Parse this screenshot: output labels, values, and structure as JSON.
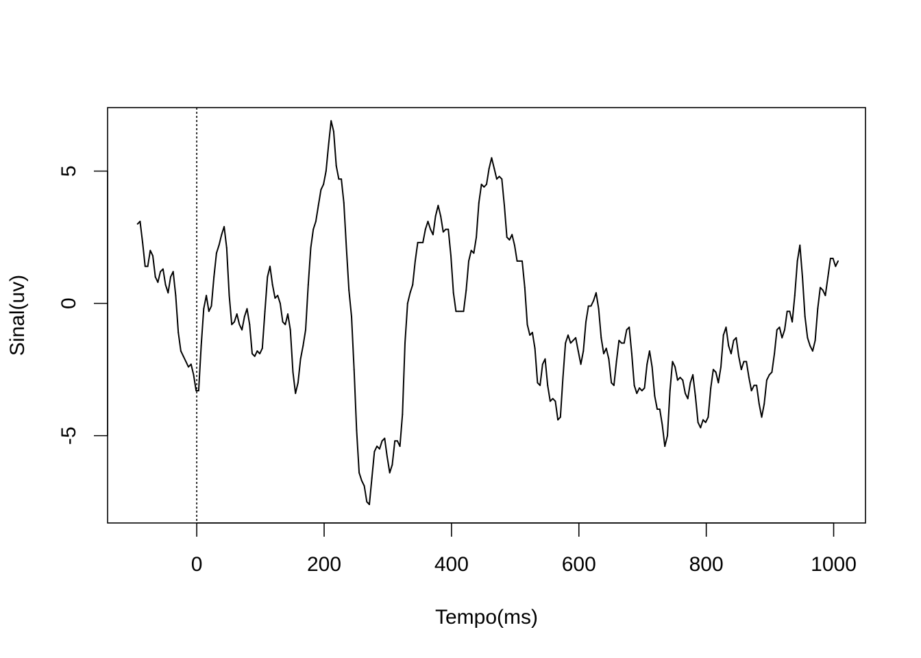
{
  "chart_data": {
    "type": "line",
    "title": "",
    "xlabel": "Tempo(ms)",
    "ylabel": "Sinal(uv)",
    "xlim": [
      -140,
      1050
    ],
    "ylim": [
      -8.3,
      7.4
    ],
    "x_ticks": [
      0,
      200,
      400,
      600,
      800,
      1000
    ],
    "x_tick_labels": [
      "0",
      "200",
      "400",
      "600",
      "800",
      "1000"
    ],
    "y_ticks": [
      -5,
      0,
      5
    ],
    "y_tick_labels": [
      "-5",
      "0",
      "5"
    ],
    "grid": false,
    "reference_line": {
      "x": 0,
      "style": "dotted"
    },
    "series": [
      {
        "color": "#000000",
        "points": [
          [
            -93,
            3.0
          ],
          [
            -89,
            3.1
          ],
          [
            -85,
            2.3
          ],
          [
            -81,
            1.4
          ],
          [
            -77,
            1.4
          ],
          [
            -73,
            2.0
          ],
          [
            -69,
            1.8
          ],
          [
            -65,
            1.0
          ],
          [
            -61,
            0.8
          ],
          [
            -57,
            1.2
          ],
          [
            -53,
            1.3
          ],
          [
            -49,
            0.7
          ],
          [
            -45,
            0.4
          ],
          [
            -41,
            1.0
          ],
          [
            -37,
            1.2
          ],
          [
            -33,
            0.3
          ],
          [
            -29,
            -1.1
          ],
          [
            -25,
            -1.8
          ],
          [
            -21,
            -2.0
          ],
          [
            -17,
            -2.2
          ],
          [
            -13,
            -2.4
          ],
          [
            -9,
            -2.3
          ],
          [
            -5,
            -2.7
          ],
          [
            -1,
            -3.3
          ],
          [
            3,
            -3.3
          ],
          [
            7,
            -1.6
          ],
          [
            11,
            -0.2
          ],
          [
            15,
            0.3
          ],
          [
            19,
            -0.3
          ],
          [
            23,
            -0.1
          ],
          [
            27,
            1.0
          ],
          [
            31,
            1.9
          ],
          [
            35,
            2.2
          ],
          [
            39,
            2.6
          ],
          [
            43,
            2.9
          ],
          [
            47,
            2.1
          ],
          [
            51,
            0.3
          ],
          [
            55,
            -0.8
          ],
          [
            59,
            -0.7
          ],
          [
            63,
            -0.4
          ],
          [
            67,
            -0.8
          ],
          [
            71,
            -1.0
          ],
          [
            75,
            -0.5
          ],
          [
            79,
            -0.2
          ],
          [
            83,
            -0.8
          ],
          [
            87,
            -1.9
          ],
          [
            91,
            -2.0
          ],
          [
            95,
            -1.8
          ],
          [
            99,
            -1.9
          ],
          [
            103,
            -1.7
          ],
          [
            107,
            -0.3
          ],
          [
            111,
            1.0
          ],
          [
            115,
            1.4
          ],
          [
            119,
            0.7
          ],
          [
            123,
            0.2
          ],
          [
            127,
            0.3
          ],
          [
            131,
            0.0
          ],
          [
            135,
            -0.7
          ],
          [
            139,
            -0.8
          ],
          [
            143,
            -0.4
          ],
          [
            147,
            -1.0
          ],
          [
            151,
            -2.6
          ],
          [
            155,
            -3.4
          ],
          [
            159,
            -3.0
          ],
          [
            163,
            -2.1
          ],
          [
            167,
            -1.6
          ],
          [
            171,
            -1.0
          ],
          [
            175,
            0.7
          ],
          [
            179,
            2.1
          ],
          [
            183,
            2.8
          ],
          [
            187,
            3.1
          ],
          [
            191,
            3.7
          ],
          [
            195,
            4.3
          ],
          [
            199,
            4.5
          ],
          [
            203,
            5.0
          ],
          [
            207,
            6.0
          ],
          [
            211,
            6.9
          ],
          [
            215,
            6.5
          ],
          [
            219,
            5.2
          ],
          [
            223,
            4.7
          ],
          [
            227,
            4.7
          ],
          [
            231,
            3.8
          ],
          [
            235,
            2.1
          ],
          [
            239,
            0.5
          ],
          [
            243,
            -0.5
          ],
          [
            247,
            -2.5
          ],
          [
            251,
            -4.8
          ],
          [
            255,
            -6.4
          ],
          [
            259,
            -6.7
          ],
          [
            263,
            -6.9
          ],
          [
            267,
            -7.5
          ],
          [
            271,
            -7.6
          ],
          [
            275,
            -6.6
          ],
          [
            279,
            -5.6
          ],
          [
            283,
            -5.4
          ],
          [
            287,
            -5.5
          ],
          [
            291,
            -5.2
          ],
          [
            295,
            -5.1
          ],
          [
            299,
            -5.8
          ],
          [
            303,
            -6.4
          ],
          [
            307,
            -6.1
          ],
          [
            311,
            -5.2
          ],
          [
            315,
            -5.2
          ],
          [
            319,
            -5.4
          ],
          [
            323,
            -4.2
          ],
          [
            327,
            -1.5
          ],
          [
            331,
            0.0
          ],
          [
            335,
            0.4
          ],
          [
            339,
            0.7
          ],
          [
            343,
            1.6
          ],
          [
            347,
            2.3
          ],
          [
            351,
            2.3
          ],
          [
            355,
            2.3
          ],
          [
            359,
            2.8
          ],
          [
            363,
            3.1
          ],
          [
            367,
            2.8
          ],
          [
            371,
            2.6
          ],
          [
            375,
            3.3
          ],
          [
            379,
            3.7
          ],
          [
            383,
            3.3
          ],
          [
            387,
            2.7
          ],
          [
            391,
            2.8
          ],
          [
            395,
            2.8
          ],
          [
            399,
            1.8
          ],
          [
            403,
            0.4
          ],
          [
            407,
            -0.3
          ],
          [
            411,
            -0.3
          ],
          [
            415,
            -0.3
          ],
          [
            419,
            -0.3
          ],
          [
            423,
            0.5
          ],
          [
            427,
            1.6
          ],
          [
            431,
            2.0
          ],
          [
            435,
            1.9
          ],
          [
            439,
            2.5
          ],
          [
            443,
            3.8
          ],
          [
            447,
            4.5
          ],
          [
            451,
            4.4
          ],
          [
            455,
            4.5
          ],
          [
            459,
            5.1
          ],
          [
            463,
            5.5
          ],
          [
            467,
            5.1
          ],
          [
            471,
            4.7
          ],
          [
            475,
            4.8
          ],
          [
            479,
            4.7
          ],
          [
            483,
            3.7
          ],
          [
            487,
            2.5
          ],
          [
            491,
            2.4
          ],
          [
            495,
            2.6
          ],
          [
            499,
            2.2
          ],
          [
            503,
            1.6
          ],
          [
            507,
            1.6
          ],
          [
            511,
            1.6
          ],
          [
            515,
            0.6
          ],
          [
            519,
            -0.8
          ],
          [
            523,
            -1.2
          ],
          [
            527,
            -1.1
          ],
          [
            531,
            -1.7
          ],
          [
            535,
            -3.0
          ],
          [
            539,
            -3.1
          ],
          [
            543,
            -2.3
          ],
          [
            547,
            -2.1
          ],
          [
            551,
            -3.1
          ],
          [
            555,
            -3.7
          ],
          [
            559,
            -3.6
          ],
          [
            563,
            -3.7
          ],
          [
            567,
            -4.4
          ],
          [
            571,
            -4.3
          ],
          [
            575,
            -2.8
          ],
          [
            579,
            -1.5
          ],
          [
            583,
            -1.2
          ],
          [
            587,
            -1.5
          ],
          [
            591,
            -1.4
          ],
          [
            595,
            -1.3
          ],
          [
            599,
            -1.8
          ],
          [
            603,
            -2.3
          ],
          [
            607,
            -1.8
          ],
          [
            611,
            -0.7
          ],
          [
            615,
            -0.1
          ],
          [
            619,
            -0.1
          ],
          [
            623,
            0.1
          ],
          [
            627,
            0.4
          ],
          [
            631,
            -0.2
          ],
          [
            635,
            -1.3
          ],
          [
            639,
            -1.9
          ],
          [
            643,
            -1.7
          ],
          [
            647,
            -2.1
          ],
          [
            651,
            -3.0
          ],
          [
            655,
            -3.1
          ],
          [
            659,
            -2.2
          ],
          [
            663,
            -1.4
          ],
          [
            667,
            -1.5
          ],
          [
            671,
            -1.5
          ],
          [
            675,
            -1.0
          ],
          [
            679,
            -0.9
          ],
          [
            683,
            -1.9
          ],
          [
            687,
            -3.1
          ],
          [
            691,
            -3.4
          ],
          [
            695,
            -3.2
          ],
          [
            699,
            -3.3
          ],
          [
            703,
            -3.2
          ],
          [
            707,
            -2.3
          ],
          [
            711,
            -1.8
          ],
          [
            715,
            -2.4
          ],
          [
            719,
            -3.5
          ],
          [
            723,
            -4.0
          ],
          [
            727,
            -4.0
          ],
          [
            731,
            -4.6
          ],
          [
            735,
            -5.4
          ],
          [
            739,
            -5.0
          ],
          [
            743,
            -3.3
          ],
          [
            747,
            -2.2
          ],
          [
            751,
            -2.4
          ],
          [
            755,
            -2.9
          ],
          [
            759,
            -2.8
          ],
          [
            763,
            -2.9
          ],
          [
            767,
            -3.4
          ],
          [
            771,
            -3.6
          ],
          [
            775,
            -3.0
          ],
          [
            779,
            -2.7
          ],
          [
            783,
            -3.5
          ],
          [
            787,
            -4.5
          ],
          [
            791,
            -4.7
          ],
          [
            795,
            -4.4
          ],
          [
            799,
            -4.5
          ],
          [
            803,
            -4.3
          ],
          [
            807,
            -3.2
          ],
          [
            811,
            -2.5
          ],
          [
            815,
            -2.6
          ],
          [
            819,
            -3.0
          ],
          [
            823,
            -2.4
          ],
          [
            827,
            -1.2
          ],
          [
            831,
            -0.9
          ],
          [
            835,
            -1.6
          ],
          [
            839,
            -1.9
          ],
          [
            843,
            -1.4
          ],
          [
            847,
            -1.3
          ],
          [
            851,
            -2.0
          ],
          [
            855,
            -2.5
          ],
          [
            859,
            -2.2
          ],
          [
            863,
            -2.2
          ],
          [
            867,
            -2.8
          ],
          [
            871,
            -3.3
          ],
          [
            875,
            -3.1
          ],
          [
            879,
            -3.1
          ],
          [
            883,
            -3.8
          ],
          [
            887,
            -4.3
          ],
          [
            891,
            -3.8
          ],
          [
            895,
            -2.9
          ],
          [
            899,
            -2.7
          ],
          [
            903,
            -2.6
          ],
          [
            907,
            -1.9
          ],
          [
            911,
            -1.0
          ],
          [
            915,
            -0.9
          ],
          [
            919,
            -1.3
          ],
          [
            923,
            -1.0
          ],
          [
            927,
            -0.3
          ],
          [
            931,
            -0.3
          ],
          [
            935,
            -0.7
          ],
          [
            939,
            0.3
          ],
          [
            943,
            1.6
          ],
          [
            947,
            2.2
          ],
          [
            951,
            1.0
          ],
          [
            955,
            -0.5
          ],
          [
            959,
            -1.3
          ],
          [
            963,
            -1.6
          ],
          [
            967,
            -1.8
          ],
          [
            971,
            -1.4
          ],
          [
            975,
            -0.2
          ],
          [
            979,
            0.6
          ],
          [
            983,
            0.5
          ],
          [
            987,
            0.3
          ],
          [
            991,
            1.0
          ],
          [
            995,
            1.7
          ],
          [
            999,
            1.7
          ],
          [
            1003,
            1.4
          ],
          [
            1007,
            1.6
          ]
        ]
      }
    ]
  }
}
